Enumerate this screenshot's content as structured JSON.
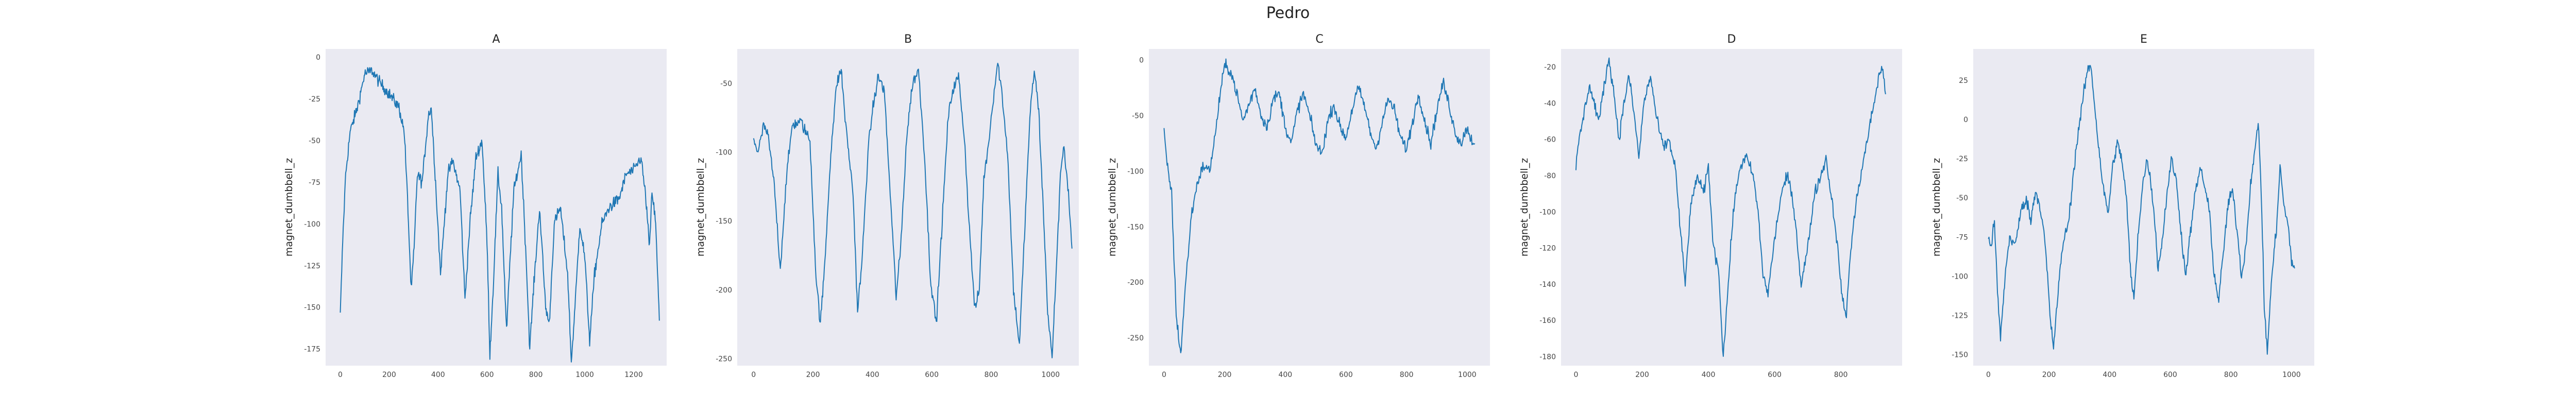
{
  "figure": {
    "title": "Pedro"
  },
  "chart_data": [
    {
      "type": "line",
      "title": "A",
      "xlabel": "",
      "ylabel": "magnet_dumbbell_z",
      "xlim": [
        -60,
        1335
      ],
      "ylim": [
        -185,
        5
      ],
      "xticks": [
        0,
        200,
        400,
        600,
        800,
        1000,
        1200
      ],
      "yticks": [
        0,
        -25,
        -50,
        -75,
        -100,
        -125,
        -150,
        -175
      ],
      "grid": false,
      "color": "#1f77b4",
      "keypoints": [
        [
          0,
          -155
        ],
        [
          10,
          -110
        ],
        [
          22,
          -70
        ],
        [
          40,
          -45
        ],
        [
          70,
          -30
        ],
        [
          100,
          -10
        ],
        [
          130,
          -8
        ],
        [
          160,
          -15
        ],
        [
          200,
          -22
        ],
        [
          240,
          -30
        ],
        [
          262,
          -45
        ],
        [
          275,
          -85
        ],
        [
          290,
          -140
        ],
        [
          302,
          -115
        ],
        [
          315,
          -70
        ],
        [
          335,
          -75
        ],
        [
          360,
          -35
        ],
        [
          372,
          -30
        ],
        [
          388,
          -70
        ],
        [
          410,
          -130
        ],
        [
          425,
          -100
        ],
        [
          440,
          -70
        ],
        [
          460,
          -62
        ],
        [
          490,
          -80
        ],
        [
          510,
          -145
        ],
        [
          530,
          -100
        ],
        [
          555,
          -60
        ],
        [
          580,
          -50
        ],
        [
          600,
          -110
        ],
        [
          612,
          -178
        ],
        [
          625,
          -140
        ],
        [
          645,
          -70
        ],
        [
          660,
          -90
        ],
        [
          680,
          -165
        ],
        [
          695,
          -120
        ],
        [
          710,
          -80
        ],
        [
          740,
          -58
        ],
        [
          760,
          -120
        ],
        [
          775,
          -175
        ],
        [
          790,
          -140
        ],
        [
          815,
          -90
        ],
        [
          840,
          -150
        ],
        [
          855,
          -160
        ],
        [
          875,
          -100
        ],
        [
          900,
          -90
        ],
        [
          930,
          -130
        ],
        [
          945,
          -183
        ],
        [
          960,
          -150
        ],
        [
          980,
          -100
        ],
        [
          1000,
          -120
        ],
        [
          1020,
          -170
        ],
        [
          1040,
          -130
        ],
        [
          1070,
          -100
        ],
        [
          1100,
          -90
        ],
        [
          1140,
          -85
        ],
        [
          1170,
          -70
        ],
        [
          1200,
          -68
        ],
        [
          1230,
          -60
        ],
        [
          1250,
          -85
        ],
        [
          1265,
          -115
        ],
        [
          1275,
          -80
        ],
        [
          1290,
          -100
        ],
        [
          1305,
          -158
        ]
      ]
    },
    {
      "type": "line",
      "title": "B",
      "xlabel": "",
      "ylabel": "magnet_dumbbell_z",
      "xlim": [
        -55,
        1095
      ],
      "ylim": [
        -255,
        -25
      ],
      "xticks": [
        0,
        200,
        400,
        600,
        800,
        1000
      ],
      "yticks": [
        -50,
        -100,
        -150,
        -200,
        -250
      ],
      "grid": false,
      "color": "#1f77b4",
      "keypoints": [
        [
          0,
          -90
        ],
        [
          15,
          -100
        ],
        [
          35,
          -80
        ],
        [
          50,
          -90
        ],
        [
          70,
          -125
        ],
        [
          90,
          -185
        ],
        [
          110,
          -120
        ],
        [
          130,
          -80
        ],
        [
          160,
          -78
        ],
        [
          190,
          -92
        ],
        [
          210,
          -190
        ],
        [
          225,
          -225
        ],
        [
          240,
          -180
        ],
        [
          260,
          -100
        ],
        [
          280,
          -50
        ],
        [
          295,
          -40
        ],
        [
          310,
          -80
        ],
        [
          335,
          -130
        ],
        [
          350,
          -215
        ],
        [
          365,
          -180
        ],
        [
          385,
          -100
        ],
        [
          400,
          -70
        ],
        [
          420,
          -45
        ],
        [
          440,
          -55
        ],
        [
          460,
          -130
        ],
        [
          480,
          -205
        ],
        [
          495,
          -170
        ],
        [
          515,
          -90
        ],
        [
          535,
          -50
        ],
        [
          555,
          -40
        ],
        [
          575,
          -100
        ],
        [
          595,
          -190
        ],
        [
          615,
          -225
        ],
        [
          635,
          -150
        ],
        [
          655,
          -75
        ],
        [
          670,
          -55
        ],
        [
          690,
          -45
        ],
        [
          710,
          -90
        ],
        [
          725,
          -150
        ],
        [
          745,
          -215
        ],
        [
          760,
          -200
        ],
        [
          775,
          -120
        ],
        [
          790,
          -95
        ],
        [
          810,
          -55
        ],
        [
          822,
          -35
        ],
        [
          835,
          -55
        ],
        [
          855,
          -100
        ],
        [
          875,
          -200
        ],
        [
          895,
          -240
        ],
        [
          910,
          -170
        ],
        [
          930,
          -75
        ],
        [
          945,
          -40
        ],
        [
          960,
          -70
        ],
        [
          975,
          -140
        ],
        [
          990,
          -215
        ],
        [
          1005,
          -250
        ],
        [
          1020,
          -180
        ],
        [
          1035,
          -110
        ],
        [
          1045,
          -95
        ],
        [
          1060,
          -130
        ],
        [
          1072,
          -170
        ]
      ]
    },
    {
      "type": "line",
      "title": "C",
      "xlabel": "",
      "ylabel": "magnet_dumbbell_z",
      "xlim": [
        -50,
        1075
      ],
      "ylim": [
        -275,
        10
      ],
      "xticks": [
        0,
        200,
        400,
        600,
        800,
        1000
      ],
      "yticks": [
        0,
        -50,
        -100,
        -150,
        -200,
        -250
      ],
      "grid": false,
      "color": "#1f77b4",
      "keypoints": [
        [
          0,
          -65
        ],
        [
          10,
          -95
        ],
        [
          25,
          -120
        ],
        [
          40,
          -230
        ],
        [
          55,
          -265
        ],
        [
          70,
          -205
        ],
        [
          90,
          -140
        ],
        [
          110,
          -110
        ],
        [
          130,
          -95
        ],
        [
          150,
          -100
        ],
        [
          170,
          -65
        ],
        [
          185,
          -30
        ],
        [
          200,
          -5
        ],
        [
          220,
          -10
        ],
        [
          240,
          -30
        ],
        [
          260,
          -55
        ],
        [
          280,
          -40
        ],
        [
          300,
          -25
        ],
        [
          320,
          -50
        ],
        [
          340,
          -60
        ],
        [
          360,
          -35
        ],
        [
          380,
          -30
        ],
        [
          400,
          -60
        ],
        [
          420,
          -75
        ],
        [
          440,
          -45
        ],
        [
          460,
          -30
        ],
        [
          480,
          -50
        ],
        [
          500,
          -75
        ],
        [
          520,
          -85
        ],
        [
          540,
          -55
        ],
        [
          560,
          -40
        ],
        [
          580,
          -60
        ],
        [
          600,
          -70
        ],
        [
          620,
          -45
        ],
        [
          640,
          -25
        ],
        [
          660,
          -40
        ],
        [
          680,
          -65
        ],
        [
          700,
          -80
        ],
        [
          720,
          -55
        ],
        [
          740,
          -35
        ],
        [
          760,
          -45
        ],
        [
          780,
          -70
        ],
        [
          800,
          -80
        ],
        [
          820,
          -55
        ],
        [
          840,
          -30
        ],
        [
          860,
          -55
        ],
        [
          880,
          -75
        ],
        [
          900,
          -45
        ],
        [
          920,
          -20
        ],
        [
          940,
          -40
        ],
        [
          960,
          -65
        ],
        [
          980,
          -75
        ],
        [
          1000,
          -60
        ],
        [
          1010,
          -70
        ],
        [
          1025,
          -75
        ]
      ]
    },
    {
      "type": "line",
      "title": "D",
      "xlabel": "",
      "ylabel": "magnet_dumbbell_z",
      "xlim": [
        -45,
        985
      ],
      "ylim": [
        -185,
        -10
      ],
      "xticks": [
        0,
        200,
        400,
        600,
        800
      ],
      "yticks": [
        -20,
        -40,
        -60,
        -80,
        -100,
        -120,
        -140,
        -160,
        -180
      ],
      "grid": false,
      "color": "#1f77b4",
      "keypoints": [
        [
          0,
          -75
        ],
        [
          10,
          -60
        ],
        [
          25,
          -45
        ],
        [
          40,
          -30
        ],
        [
          55,
          -40
        ],
        [
          70,
          -50
        ],
        [
          85,
          -30
        ],
        [
          100,
          -15
        ],
        [
          115,
          -35
        ],
        [
          130,
          -60
        ],
        [
          145,
          -40
        ],
        [
          160,
          -25
        ],
        [
          175,
          -45
        ],
        [
          190,
          -70
        ],
        [
          205,
          -40
        ],
        [
          225,
          -25
        ],
        [
          245,
          -50
        ],
        [
          265,
          -65
        ],
        [
          280,
          -60
        ],
        [
          300,
          -75
        ],
        [
          315,
          -110
        ],
        [
          330,
          -140
        ],
        [
          345,
          -100
        ],
        [
          365,
          -80
        ],
        [
          385,
          -90
        ],
        [
          400,
          -75
        ],
        [
          415,
          -120
        ],
        [
          430,
          -130
        ],
        [
          445,
          -180
        ],
        [
          460,
          -140
        ],
        [
          475,
          -100
        ],
        [
          495,
          -75
        ],
        [
          515,
          -70
        ],
        [
          535,
          -80
        ],
        [
          550,
          -100
        ],
        [
          565,
          -135
        ],
        [
          580,
          -145
        ],
        [
          600,
          -115
        ],
        [
          620,
          -90
        ],
        [
          640,
          -80
        ],
        [
          660,
          -100
        ],
        [
          680,
          -140
        ],
        [
          700,
          -120
        ],
        [
          720,
          -90
        ],
        [
          740,
          -80
        ],
        [
          755,
          -70
        ],
        [
          770,
          -90
        ],
        [
          785,
          -110
        ],
        [
          800,
          -140
        ],
        [
          815,
          -160
        ],
        [
          830,
          -120
        ],
        [
          850,
          -90
        ],
        [
          870,
          -70
        ],
        [
          885,
          -55
        ],
        [
          900,
          -40
        ],
        [
          915,
          -25
        ],
        [
          925,
          -20
        ],
        [
          935,
          -35
        ]
      ]
    },
    {
      "type": "line",
      "title": "E",
      "xlabel": "",
      "ylabel": "magnet_dumbbell_z",
      "xlim": [
        -50,
        1075
      ],
      "ylim": [
        -157,
        45
      ],
      "xticks": [
        0,
        200,
        400,
        600,
        800,
        1000
      ],
      "yticks": [
        25,
        0,
        -25,
        -50,
        -75,
        -100,
        -125,
        -150
      ],
      "grid": false,
      "color": "#1f77b4",
      "keypoints": [
        [
          0,
          -75
        ],
        [
          10,
          -80
        ],
        [
          20,
          -65
        ],
        [
          30,
          -110
        ],
        [
          40,
          -140
        ],
        [
          55,
          -100
        ],
        [
          70,
          -75
        ],
        [
          90,
          -80
        ],
        [
          105,
          -60
        ],
        [
          125,
          -50
        ],
        [
          140,
          -65
        ],
        [
          155,
          -45
        ],
        [
          170,
          -55
        ],
        [
          185,
          -75
        ],
        [
          195,
          -100
        ],
        [
          205,
          -130
        ],
        [
          215,
          -145
        ],
        [
          230,
          -110
        ],
        [
          245,
          -80
        ],
        [
          265,
          -65
        ],
        [
          280,
          -35
        ],
        [
          295,
          -10
        ],
        [
          310,
          10
        ],
        [
          325,
          30
        ],
        [
          338,
          35
        ],
        [
          350,
          10
        ],
        [
          365,
          -20
        ],
        [
          380,
          -45
        ],
        [
          395,
          -60
        ],
        [
          410,
          -30
        ],
        [
          425,
          -15
        ],
        [
          440,
          -25
        ],
        [
          455,
          -50
        ],
        [
          470,
          -100
        ],
        [
          480,
          -115
        ],
        [
          495,
          -70
        ],
        [
          510,
          -40
        ],
        [
          525,
          -25
        ],
        [
          545,
          -55
        ],
        [
          560,
          -95
        ],
        [
          575,
          -75
        ],
        [
          590,
          -45
        ],
        [
          605,
          -25
        ],
        [
          620,
          -40
        ],
        [
          635,
          -70
        ],
        [
          650,
          -100
        ],
        [
          665,
          -75
        ],
        [
          680,
          -50
        ],
        [
          700,
          -30
        ],
        [
          715,
          -45
        ],
        [
          730,
          -60
        ],
        [
          745,
          -100
        ],
        [
          760,
          -115
        ],
        [
          775,
          -85
        ],
        [
          790,
          -55
        ],
        [
          805,
          -45
        ],
        [
          820,
          -70
        ],
        [
          835,
          -100
        ],
        [
          850,
          -80
        ],
        [
          865,
          -40
        ],
        [
          880,
          -20
        ],
        [
          890,
          0
        ],
        [
          900,
          -45
        ],
        [
          910,
          -120
        ],
        [
          920,
          -148
        ],
        [
          935,
          -100
        ],
        [
          950,
          -70
        ],
        [
          962,
          -30
        ],
        [
          975,
          -55
        ],
        [
          990,
          -70
        ],
        [
          1000,
          -90
        ],
        [
          1010,
          -95
        ]
      ]
    }
  ]
}
